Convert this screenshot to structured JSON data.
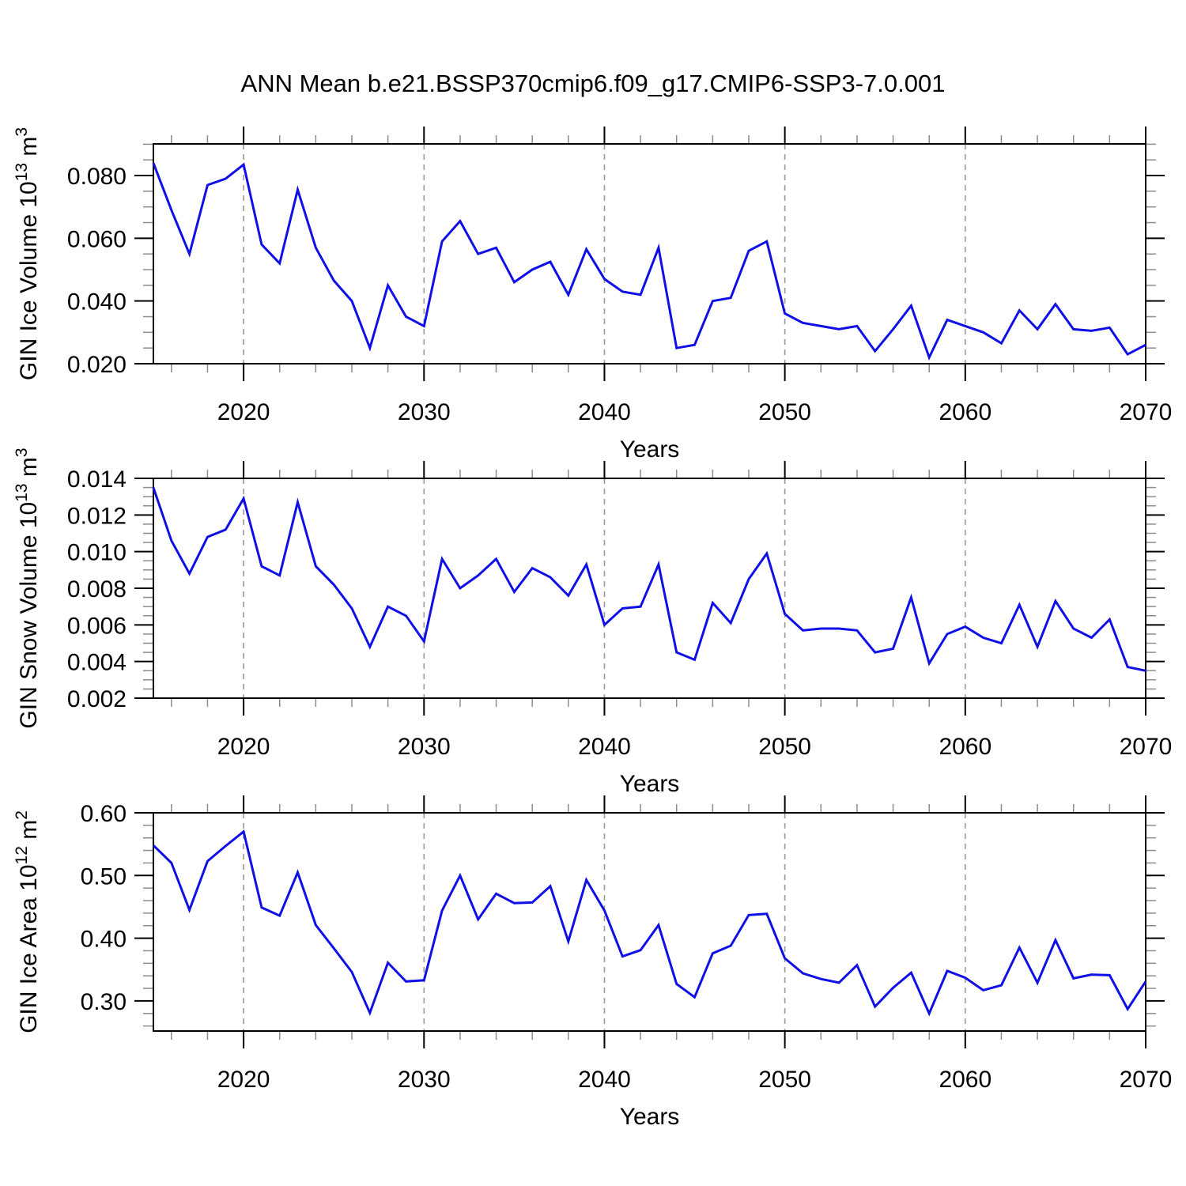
{
  "title": "ANN Mean b.e21.BSSP370cmip6.f09_g17.CMIP6-SSP3-7.0.001",
  "colors": {
    "line": "#0f0fe6",
    "frame": "#000000",
    "major_tick": "#000000",
    "minor_tick": "#8c8c8c",
    "gridline": "#9a9a9a",
    "text": "#000000",
    "background": "#ffffff"
  },
  "chart_data": [
    {
      "type": "line",
      "id": "gin-ice-volume",
      "ylabel_parts": [
        "GIN Ice Volume 10",
        "^13",
        " m",
        "^3"
      ],
      "xlabel": "Years",
      "x": [
        2015,
        2016,
        2017,
        2018,
        2019,
        2020,
        2021,
        2022,
        2023,
        2024,
        2025,
        2026,
        2027,
        2028,
        2029,
        2030,
        2031,
        2032,
        2033,
        2034,
        2035,
        2036,
        2037,
        2038,
        2039,
        2040,
        2041,
        2042,
        2043,
        2044,
        2045,
        2046,
        2047,
        2048,
        2049,
        2050,
        2051,
        2052,
        2053,
        2054,
        2055,
        2056,
        2057,
        2058,
        2059,
        2060,
        2061,
        2062,
        2063,
        2064,
        2065,
        2066,
        2067,
        2068,
        2069,
        2070
      ],
      "y": [
        0.084,
        0.069,
        0.055,
        0.077,
        0.079,
        0.0835,
        0.058,
        0.052,
        0.0755,
        0.057,
        0.0465,
        0.04,
        0.025,
        0.045,
        0.035,
        0.032,
        0.059,
        0.0655,
        0.055,
        0.057,
        0.046,
        0.05,
        0.0525,
        0.042,
        0.0565,
        0.047,
        0.043,
        0.042,
        0.057,
        0.025,
        0.026,
        0.04,
        0.041,
        0.056,
        0.059,
        0.036,
        0.033,
        0.032,
        0.031,
        0.032,
        0.024,
        0.031,
        0.0385,
        0.022,
        0.034,
        0.032,
        0.03,
        0.0265,
        0.037,
        0.031,
        0.039,
        0.031,
        0.0305,
        0.0315,
        0.023,
        0.026
      ],
      "ylim": [
        0.02,
        0.0901
      ],
      "yticks": [
        0.02,
        0.04,
        0.06,
        0.08
      ],
      "ytick_labels": [
        "0.020",
        "0.040",
        "0.060",
        "0.080"
      ],
      "y_minor_step": 0.005,
      "xlim": [
        2015,
        2070
      ],
      "xticks": [
        2020,
        2030,
        2040,
        2050,
        2060,
        2070
      ],
      "xtick_labels": [
        "2020",
        "2030",
        "2040",
        "2050",
        "2060",
        "2070"
      ],
      "x_minor_step": 2,
      "gridlines_x": [
        2020,
        2030,
        2040,
        2050,
        2060
      ],
      "grid_style": "dashed"
    },
    {
      "type": "line",
      "id": "gin-snow-volume",
      "ylabel_parts": [
        "GIN Snow Volume 10",
        "^13",
        " m",
        "^3"
      ],
      "xlabel": "Years",
      "x": [
        2015,
        2016,
        2017,
        2018,
        2019,
        2020,
        2021,
        2022,
        2023,
        2024,
        2025,
        2026,
        2027,
        2028,
        2029,
        2030,
        2031,
        2032,
        2033,
        2034,
        2035,
        2036,
        2037,
        2038,
        2039,
        2040,
        2041,
        2042,
        2043,
        2044,
        2045,
        2046,
        2047,
        2048,
        2049,
        2050,
        2051,
        2052,
        2053,
        2054,
        2055,
        2056,
        2057,
        2058,
        2059,
        2060,
        2061,
        2062,
        2063,
        2064,
        2065,
        2066,
        2067,
        2068,
        2069,
        2070
      ],
      "y": [
        0.0135,
        0.0106,
        0.0088,
        0.0108,
        0.0112,
        0.0129,
        0.0092,
        0.0087,
        0.0127,
        0.0092,
        0.0082,
        0.0069,
        0.0048,
        0.007,
        0.0065,
        0.0051,
        0.0096,
        0.008,
        0.0087,
        0.0096,
        0.0078,
        0.0091,
        0.0086,
        0.0076,
        0.0093,
        0.006,
        0.0069,
        0.007,
        0.0093,
        0.0045,
        0.0041,
        0.0072,
        0.0061,
        0.0085,
        0.0099,
        0.0066,
        0.0057,
        0.0058,
        0.0058,
        0.0057,
        0.0045,
        0.0047,
        0.0075,
        0.0039,
        0.0055,
        0.0059,
        0.0053,
        0.005,
        0.0071,
        0.0048,
        0.0073,
        0.0058,
        0.0053,
        0.0063,
        0.0037,
        0.0035
      ],
      "ylim": [
        0.002,
        0.014
      ],
      "yticks": [
        0.002,
        0.004,
        0.006,
        0.008,
        0.01,
        0.012,
        0.014
      ],
      "ytick_labels": [
        "0.002",
        "0.004",
        "0.006",
        "0.008",
        "0.010",
        "0.012",
        "0.014"
      ],
      "y_minor_step": 0.0005,
      "xlim": [
        2015,
        2070
      ],
      "xticks": [
        2020,
        2030,
        2040,
        2050,
        2060,
        2070
      ],
      "xtick_labels": [
        "2020",
        "2030",
        "2040",
        "2050",
        "2060",
        "2070"
      ],
      "x_minor_step": 2,
      "gridlines_x": [
        2020,
        2030,
        2040,
        2050,
        2060
      ],
      "grid_style": "dashed"
    },
    {
      "type": "line",
      "id": "gin-ice-area",
      "ylabel_parts": [
        "GIN Ice Area 10",
        "^12",
        " m",
        "^2"
      ],
      "xlabel": "Years",
      "x": [
        2015,
        2016,
        2017,
        2018,
        2019,
        2020,
        2021,
        2022,
        2023,
        2024,
        2025,
        2026,
        2027,
        2028,
        2029,
        2030,
        2031,
        2032,
        2033,
        2034,
        2035,
        2036,
        2037,
        2038,
        2039,
        2040,
        2041,
        2042,
        2043,
        2044,
        2045,
        2046,
        2047,
        2048,
        2049,
        2050,
        2051,
        2052,
        2053,
        2054,
        2055,
        2056,
        2057,
        2058,
        2059,
        2060,
        2061,
        2062,
        2063,
        2064,
        2065,
        2066,
        2067,
        2068,
        2069,
        2070
      ],
      "y": [
        0.548,
        0.52,
        0.445,
        0.523,
        0.547,
        0.57,
        0.449,
        0.436,
        0.505,
        0.421,
        0.384,
        0.346,
        0.281,
        0.361,
        0.331,
        0.333,
        0.444,
        0.5,
        0.43,
        0.471,
        0.456,
        0.457,
        0.483,
        0.395,
        0.493,
        0.444,
        0.371,
        0.381,
        0.421,
        0.327,
        0.306,
        0.376,
        0.388,
        0.437,
        0.439,
        0.368,
        0.344,
        0.335,
        0.329,
        0.357,
        0.291,
        0.321,
        0.345,
        0.28,
        0.348,
        0.337,
        0.317,
        0.325,
        0.385,
        0.329,
        0.397,
        0.336,
        0.342,
        0.341,
        0.287,
        0.331
      ],
      "ylim": [
        0.252,
        0.6
      ],
      "yticks": [
        0.3,
        0.4,
        0.5,
        0.6
      ],
      "ytick_labels": [
        "0.30",
        "0.40",
        "0.50",
        "0.60"
      ],
      "y_minor_step": 0.02,
      "xlim": [
        2015,
        2070
      ],
      "xticks": [
        2020,
        2030,
        2040,
        2050,
        2060,
        2070
      ],
      "xtick_labels": [
        "2020",
        "2030",
        "2040",
        "2050",
        "2060",
        "2070"
      ],
      "x_minor_step": 2,
      "gridlines_x": [
        2020,
        2030,
        2040,
        2050,
        2060
      ],
      "grid_style": "dashed"
    }
  ]
}
